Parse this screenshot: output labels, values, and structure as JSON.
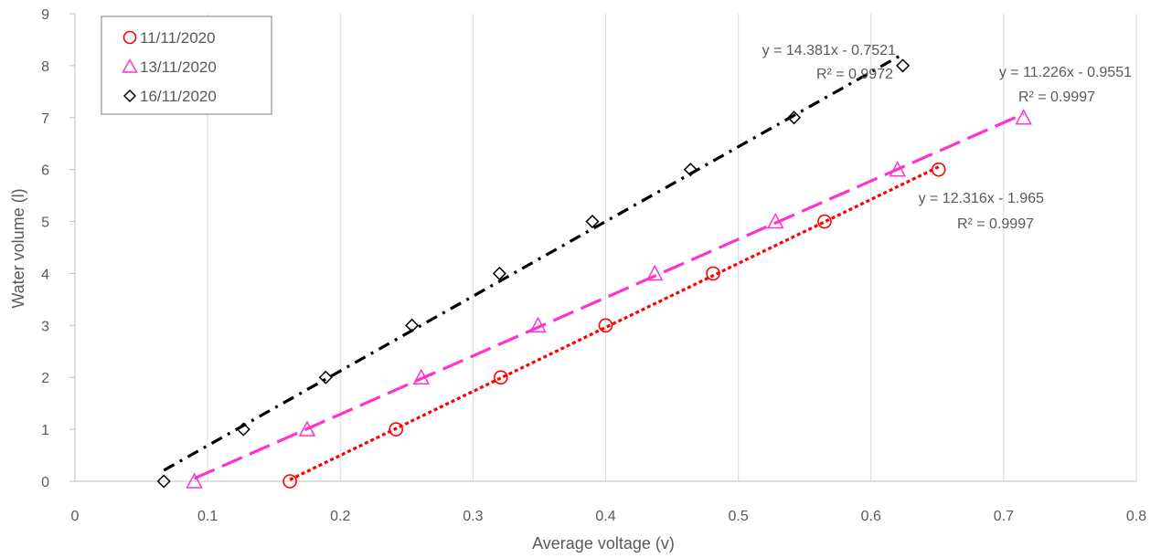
{
  "chart_data": {
    "type": "scatter",
    "title": "",
    "xlabel": "Average voltage (v)",
    "ylabel": "Water volume (l)",
    "xlim": [
      0,
      0.8
    ],
    "ylim": [
      0,
      9
    ],
    "x_ticks": [
      "0",
      "0.1",
      "0.2",
      "0.3",
      "0.4",
      "0.5",
      "0.6",
      "0.7",
      "0.8"
    ],
    "y_ticks": [
      "0",
      "1",
      "2",
      "3",
      "4",
      "5",
      "6",
      "7",
      "8",
      "9"
    ],
    "grid": "vertical",
    "legend_position": "top-left",
    "series": [
      {
        "name": "11/11/2020",
        "marker": "circle",
        "color": "#ff0000",
        "trend_color": "#ff0000",
        "trend_style": "dotted",
        "x": [
          0.162,
          0.242,
          0.321,
          0.4,
          0.481,
          0.565,
          0.651
        ],
        "y": [
          0,
          1,
          2,
          3,
          4,
          5,
          6
        ],
        "trendline": {
          "slope": 12.316,
          "intercept": -1.965,
          "x_range": [
            0.162,
            0.651
          ]
        },
        "equation": "y = 12.316x - 1.965",
        "r2": "R² = 0.9997"
      },
      {
        "name": "13/11/2020",
        "marker": "triangle",
        "color": "#ff33cc",
        "trend_color": "#ff33cc",
        "trend_style": "dashed",
        "x": [
          0.09,
          0.175,
          0.261,
          0.349,
          0.437,
          0.528,
          0.62,
          0.715
        ],
        "y": [
          0,
          1,
          2,
          3,
          4,
          5,
          6,
          7
        ],
        "trendline": {
          "slope": 11.226,
          "intercept": -0.9551,
          "x_range": [
            0.09,
            0.715
          ]
        },
        "equation": "y = 11.226x - 0.9551",
        "r2": "R² = 0.9997"
      },
      {
        "name": "16/11/2020",
        "marker": "diamond",
        "color": "#000000",
        "trend_color": "#000000",
        "trend_style": "dash-dot",
        "x": [
          0.067,
          0.127,
          0.189,
          0.254,
          0.32,
          0.39,
          0.464,
          0.542,
          0.624
        ],
        "y": [
          0,
          1,
          2,
          3,
          4,
          5,
          6,
          7,
          8
        ],
        "trendline": {
          "slope": 14.381,
          "intercept": -0.7521,
          "x_range": [
            0.067,
            0.624
          ]
        },
        "equation": "y = 14.381x - 0.7521",
        "r2": "R² = 0.9972"
      }
    ]
  }
}
